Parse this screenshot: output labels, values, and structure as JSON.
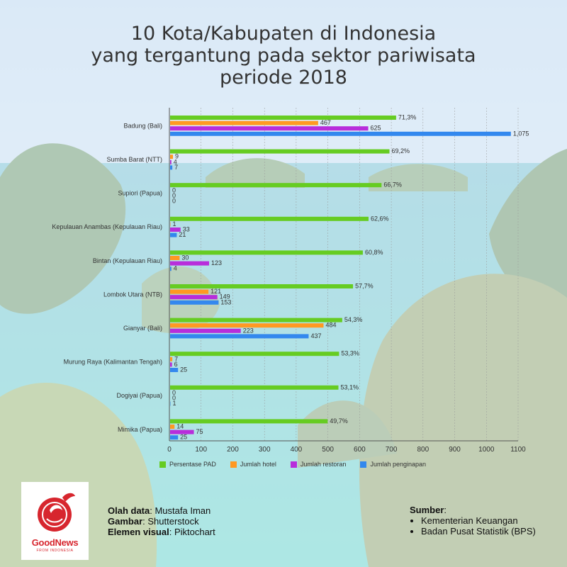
{
  "title_lines": [
    "10 Kota/Kabupaten di Indonesia",
    "yang tergantung pada sektor pariwisata",
    "periode 2018"
  ],
  "colors": {
    "pad": "#66cc22",
    "hotel": "#ff9922",
    "restoran": "#b82ddb",
    "penginapan": "#3388ee"
  },
  "chart_data": {
    "type": "bar",
    "orientation": "horizontal",
    "categories": [
      "Badung (Bali)",
      "Sumba Barat (NTT)",
      "Supiori (Papua)",
      "Kepulauan Anambas (Kepulauan Riau)",
      "Bintan (Kepulauan Riau)",
      "Lombok Utara (NTB)",
      "Gianyar (Bali)",
      "Murung Raya (Kalimantan Tengah)",
      "Dogiyai (Papua)",
      "Mimika (Papua)"
    ],
    "series": [
      {
        "name": "Persentase PAD",
        "values": [
          71.3,
          69.2,
          66.7,
          62.6,
          60.8,
          57.7,
          54.3,
          53.3,
          53.1,
          49.7
        ],
        "labels": [
          "71,3%",
          "69,2%",
          "66,7%",
          "62,6%",
          "60,8%",
          "57,7%",
          "54,3%",
          "53,3%",
          "53,1%",
          "49,7%"
        ]
      },
      {
        "name": "Jumlah hotel",
        "values": [
          467,
          9,
          0,
          1,
          30,
          121,
          484,
          7,
          0,
          14
        ],
        "labels": [
          "467",
          "9",
          "0",
          "1",
          "30",
          "121",
          "484",
          "7",
          "0",
          "14"
        ]
      },
      {
        "name": "Jumlah restoran",
        "values": [
          625,
          4,
          0,
          33,
          123,
          149,
          223,
          6,
          0,
          75
        ],
        "labels": [
          "625",
          "4",
          "0",
          "33",
          "123",
          "149",
          "223",
          "6",
          "0",
          "75"
        ]
      },
      {
        "name": "Jumlah penginapan",
        "values": [
          1075,
          7,
          0,
          21,
          4,
          153,
          437,
          25,
          1,
          25
        ],
        "labels": [
          "1,075",
          "7",
          "0",
          "21",
          "4",
          "153",
          "437",
          "25",
          "1",
          "25"
        ]
      }
    ],
    "pad_display_scale": 10,
    "xlim": [
      0,
      1100
    ],
    "xticks": [
      "0",
      "100",
      "200",
      "300",
      "400",
      "500",
      "600",
      "700",
      "800",
      "900",
      "1000",
      "1100"
    ],
    "legend_position": "bottom"
  },
  "logo": {
    "brand": "GoodNews",
    "sub": "FROM INDONESIA"
  },
  "credits": [
    {
      "key": "Olah data",
      "value": ": Mustafa Iman"
    },
    {
      "key": "Gambar",
      "value": ": Shutterstock"
    },
    {
      "key": "Elemen visual",
      "value": ": Piktochart"
    }
  ],
  "source": {
    "heading": "Sumber",
    "colon": ":",
    "items": [
      "Kementerian Keuangan",
      "Badan Pusat Statistik (BPS)"
    ]
  }
}
